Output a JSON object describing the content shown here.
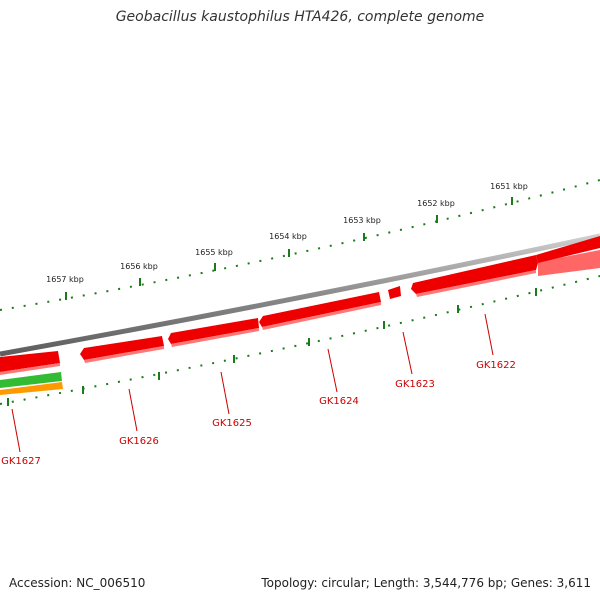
{
  "title": "Geobacillus kaustophilus HTA426, complete genome",
  "ticks": [
    {
      "label": "1651 kbp",
      "value": 1651
    },
    {
      "label": "1652 kbp",
      "value": 1652
    },
    {
      "label": "1653 kbp",
      "value": 1653
    },
    {
      "label": "1654 kbp",
      "value": 1654
    },
    {
      "label": "1655 kbp",
      "value": 1655
    },
    {
      "label": "1656 kbp",
      "value": 1656
    },
    {
      "label": "1657 kbp",
      "value": 1657
    }
  ],
  "genes": [
    {
      "label": "GK1622",
      "color": "#ee0000"
    },
    {
      "label": "GK1623",
      "color": "#ee0000"
    },
    {
      "label": "GK1624",
      "color": "#ee0000"
    },
    {
      "label": "GK1625",
      "color": "#ee0000"
    },
    {
      "label": "GK1626",
      "color": "#ee0000"
    },
    {
      "label": "GK1627",
      "color": "#ee0000"
    }
  ],
  "colors": {
    "backbone": "#888888",
    "tick": "#1b7a1b",
    "gene": "#ee0000",
    "label": "#cc0000",
    "green_track": "#33bb33",
    "orange_track": "#ff9900"
  },
  "footer": {
    "accession": "Accession: NC_006510",
    "summary": "Topology: circular; Length: 3,544,776 bp; Genes: 3,611"
  }
}
